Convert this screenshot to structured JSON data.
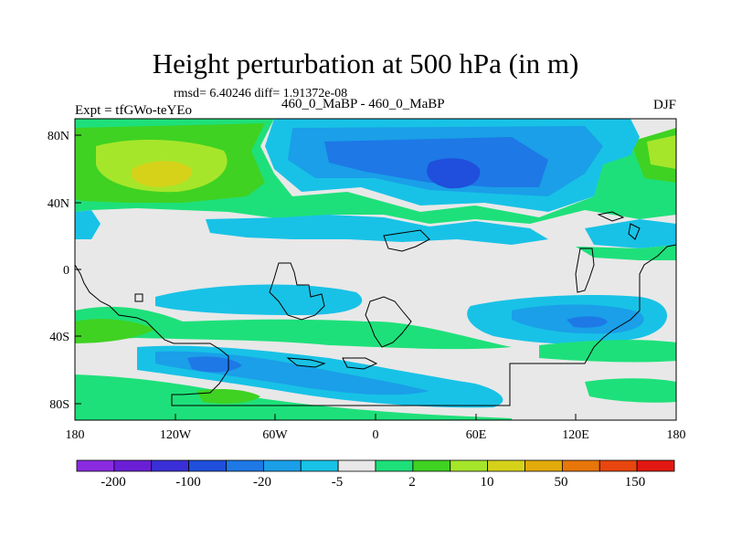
{
  "title": "Height perturbation at 500 hPa (in m)",
  "stats": "rmsd= 6.40246 diff= 1.91372e-08",
  "left_label": "Expt = tfGWo-teYEo",
  "center_label": "460_0_MaBP - 460_0_MaBP",
  "right_label": "DJF",
  "x_ticks": [
    "180",
    "120W",
    "60W",
    "0",
    "60E",
    "120E",
    "180"
  ],
  "y_ticks": [
    "80N",
    "40N",
    "0",
    "40S",
    "80S"
  ],
  "colorbar": {
    "colors": [
      "#8a2be2",
      "#6a1fd6",
      "#3a2fd8",
      "#1f4fdc",
      "#1e78e6",
      "#1a9fe8",
      "#18c2e6",
      "#e8e8e8",
      "#1ee07a",
      "#3fd222",
      "#a6e62a",
      "#d6d21a",
      "#e2aa0a",
      "#e8760a",
      "#e8460e",
      "#e21812"
    ],
    "labels": [
      "-200",
      "-100",
      "-20",
      "-5",
      "2",
      "10",
      "50",
      "150"
    ]
  },
  "chart_data": {
    "type": "heatmap",
    "title": "Height perturbation at 500 hPa (in m)",
    "x_range": [
      -180,
      180
    ],
    "y_range": [
      -90,
      90
    ],
    "legend_position": "bottom",
    "levels": [
      -200,
      -150,
      -100,
      -50,
      -20,
      -10,
      -5,
      -2,
      2,
      5,
      10,
      20,
      50,
      100,
      150,
      200
    ]
  }
}
